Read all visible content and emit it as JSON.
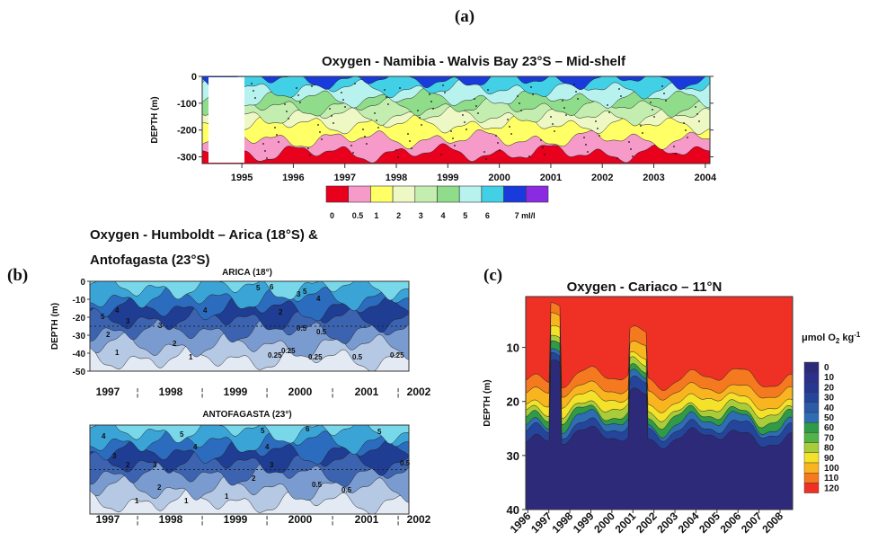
{
  "chart_data": [
    {
      "type": "contour",
      "panel_label": "(a)",
      "title": "Oxygen - Namibia - Walvis Bay 23°S – Mid-shelf",
      "y_label": "DEPTH (m)",
      "xlim": [
        1994.23,
        2004.09
      ],
      "xticks": [
        1995,
        1996,
        1997,
        1998,
        1999,
        2000,
        2001,
        2002,
        2003,
        2004
      ],
      "ylim": [
        -325,
        0
      ],
      "yticks": [
        0,
        -100,
        -200,
        -300
      ],
      "colorbar": {
        "ticks": [
          0,
          0.5,
          1,
          2,
          3,
          4,
          5,
          6,
          {
            "value": 7,
            "label": "7 ml/l"
          }
        ],
        "colors": [
          "#e8001c",
          "#f59ac9",
          "#ffff66",
          "#eef8c4",
          "#c4eeb0",
          "#8fdc8a",
          "#b8f2ee",
          "#42d0e6",
          "#1a3bdc",
          "#8a2be2"
        ]
      }
    },
    {
      "type": "contour",
      "panel_label": "(b)",
      "title": [
        "Oxygen - Humboldt – Arica (18°S) &",
        "Antofagasta (23°S)"
      ],
      "panels": [
        {
          "subtitle": "ARICA (18°)",
          "y_label": "DEPTH (m)",
          "ylim": [
            -50,
            0
          ],
          "yticks": [
            0,
            -10,
            -20,
            -30,
            -40,
            -50
          ],
          "categories": [
            "1997",
            "1998",
            "1999",
            "2000",
            "2001",
            "2002"
          ],
          "contour_labels": [
            5,
            4,
            3,
            2,
            1,
            3,
            2,
            4,
            5,
            6,
            2,
            3,
            5,
            4,
            0.5,
            0.25,
            0.25,
            0.25,
            0.5,
            0.5,
            0.25,
            1
          ]
        },
        {
          "subtitle": "ANTOFAGASTA (23°)",
          "ylim": [
            -50,
            0
          ],
          "categories": [
            "1997",
            "1998",
            "1999",
            "2000",
            "2001",
            "2002"
          ],
          "contour_labels": [
            4,
            3,
            2,
            1,
            5,
            4,
            3,
            2,
            1,
            5,
            4,
            3,
            2,
            1,
            0.5,
            0.5,
            0.5,
            6,
            5
          ]
        }
      ]
    },
    {
      "type": "contour",
      "panel_label": "(c)",
      "title": "Oxygen - Cariaco – 11°N",
      "y_label": "DEPTH (m)",
      "xlim": [
        1995.9,
        2008.6
      ],
      "xticks": [
        1996,
        1997,
        1998,
        1999,
        2000,
        2001,
        2002,
        2003,
        2004,
        2005,
        2006,
        2007,
        2008
      ],
      "ylim": [
        40,
        0.6
      ],
      "yticks": [
        10,
        20,
        30,
        40
      ],
      "colorbar": {
        "unit": {
          "text": "μmol O",
          "sub": "2",
          "text2": " kg",
          "sup": "-1"
        },
        "ticks": [
          0,
          10,
          20,
          30,
          40,
          50,
          60,
          70,
          80,
          90,
          100,
          110,
          120
        ],
        "colors": [
          "#2d2a7a",
          "#2c2f8c",
          "#27368f",
          "#25459b",
          "#2a5aa8",
          "#2e6db3",
          "#2f9a47",
          "#52b349",
          "#a8cc3a",
          "#f4e12a",
          "#f9b520",
          "#f5791f",
          "#ee3124"
        ]
      }
    }
  ]
}
